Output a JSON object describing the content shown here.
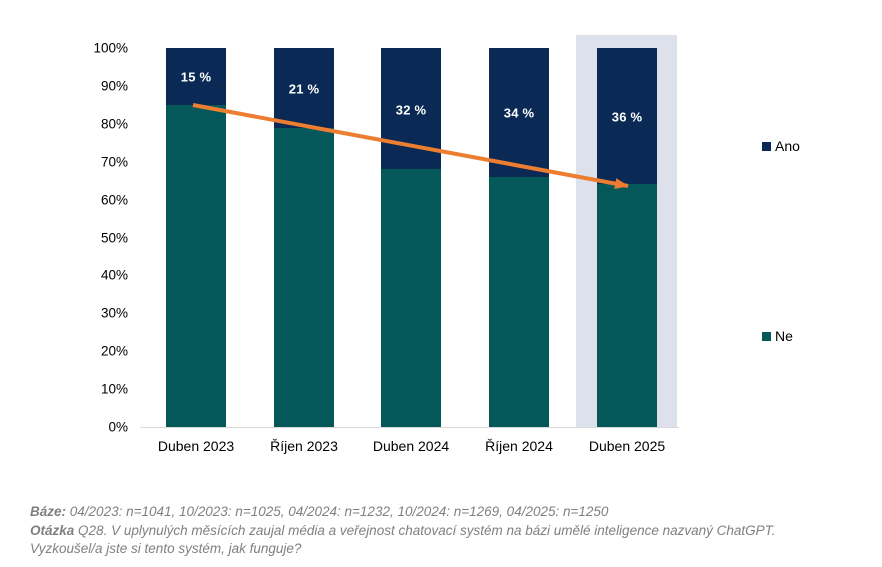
{
  "colors": {
    "ano_navy": "#0a2a55",
    "ne_teal": "#04585a",
    "trend_arrow_orange": "#ed7d31",
    "highlight_box": "#dce1ec",
    "axis_line": "#d9d9d9",
    "footnote_gray": "#808080",
    "bar_value_label": "#ffffff"
  },
  "chart_data": {
    "type": "bar",
    "stacked": true,
    "title": "",
    "xlabel": "",
    "ylabel": "",
    "ylim": [
      0,
      100
    ],
    "grid": false,
    "legend_position": "right",
    "categories": [
      "Duben 2023",
      "Říjen 2023",
      "Duben 2024",
      "Říjen 2024",
      "Duben 2025"
    ],
    "series": [
      {
        "name": "Ano",
        "color": "#0a2a55",
        "values": [
          15,
          21,
          32,
          34,
          36
        ],
        "data_labels": [
          "15 %",
          "21 %",
          "32 %",
          "34 %",
          "36 %"
        ]
      },
      {
        "name": "Ne",
        "color": "#04585a",
        "values": [
          85,
          79,
          68,
          66,
          64
        ],
        "data_labels": [
          "",
          "",
          "",
          "",
          ""
        ]
      }
    ],
    "y_tick_labels": [
      "0%",
      "10%",
      "20%",
      "30%",
      "40%",
      "50%",
      "60%",
      "70%",
      "80%",
      "90%",
      "100%"
    ],
    "highlighted_category": "Duben 2025",
    "annotations": {
      "trend_arrow": {
        "color": "#ed7d31",
        "from": "top of Ne segment, Duben 2023 (85%)",
        "to": "top of Ne segment, Duben 2025 (64%)"
      }
    }
  },
  "legend": {
    "items": [
      {
        "label": "Ano",
        "color": "#0a2a55"
      },
      {
        "label": "Ne",
        "color": "#04585a"
      }
    ]
  },
  "footer": {
    "baze_label": "Báze:",
    "baze_text": "04/2023: n=1041, 10/2023: n=1025, 04/2024: n=1232, 10/2024: n=1269, 04/2025: n=1250",
    "otazka_label": "Otázka",
    "otazka_text": "Q28. V uplynulých měsících zaujal média a veřejnost chatovací systém na bázi umělé inteligence nazvaný ChatGPT.",
    "otazka_text_line2": "Vyzkoušel/a jste si tento systém, jak funguje?"
  }
}
